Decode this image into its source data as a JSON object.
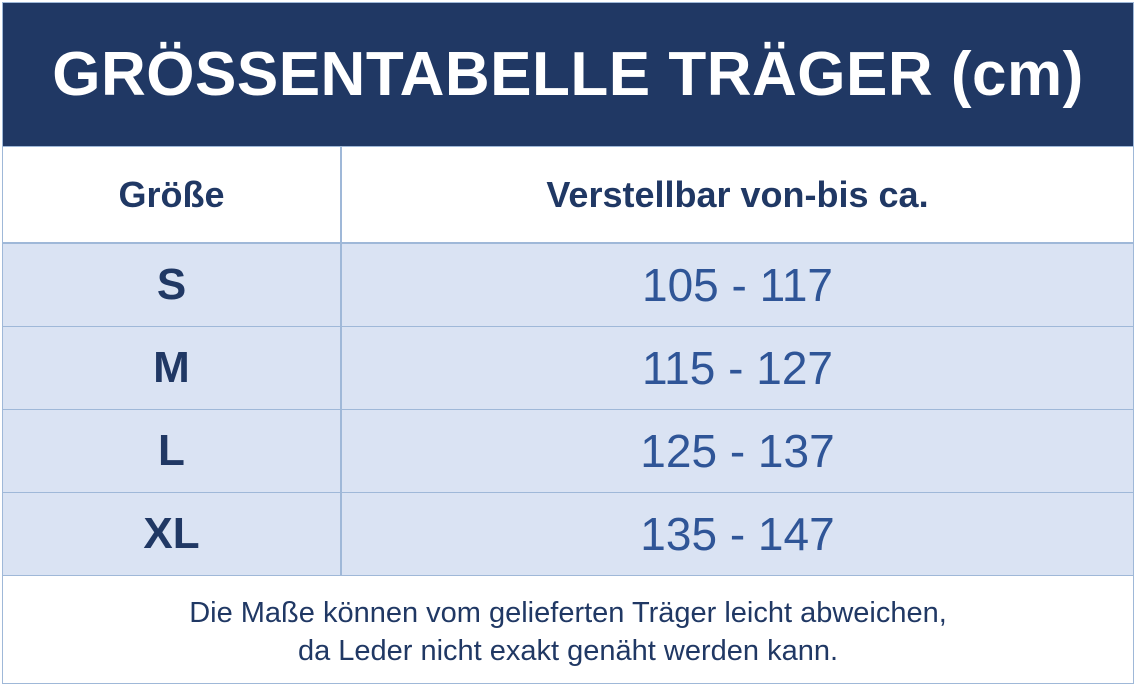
{
  "title": "GRÖSSENTABELLE TRÄGER (cm)",
  "table": {
    "headers": [
      "Größe",
      "Verstellbar von-bis ca."
    ],
    "rows": [
      {
        "size": "S",
        "range": "105 - 117"
      },
      {
        "size": "M",
        "range": "115 - 127"
      },
      {
        "size": "L",
        "range": "125 - 137"
      },
      {
        "size": "XL",
        "range": "135 - 147"
      }
    ]
  },
  "footnote": {
    "line1": "Die Maße können vom gelieferten Träger leicht abweichen,",
    "line2": "da Leder nicht exakt genäht werden kann."
  },
  "colors": {
    "title_background": "#203864",
    "title_text": "#ffffff",
    "row_background": "#dae3f3",
    "grid_line": "#9fb8d8",
    "size_text": "#203864",
    "range_text": "#2f5597"
  }
}
